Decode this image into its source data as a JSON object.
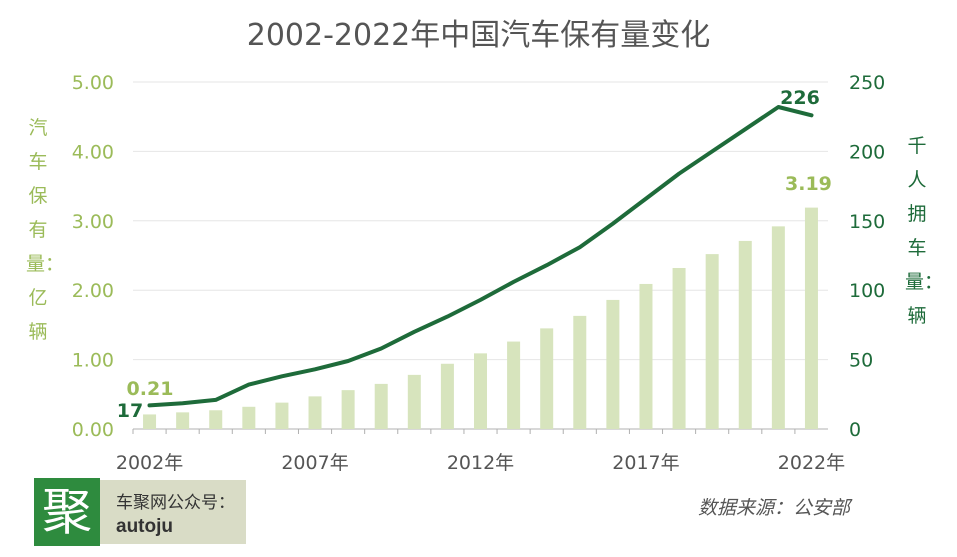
{
  "chart_data": {
    "type": "bar+line",
    "title": "2002-2022年中国汽车保有量变化",
    "x": [
      "2002",
      "2003",
      "2004",
      "2005",
      "2006",
      "2007",
      "2008",
      "2009",
      "2010",
      "2011",
      "2012",
      "2013",
      "2014",
      "2015",
      "2016",
      "2017",
      "2018",
      "2019",
      "2020",
      "2021",
      "2022"
    ],
    "x_tick_labels": [
      "2002年",
      "2007年",
      "2012年",
      "2017年",
      "2022年"
    ],
    "series": [
      {
        "name": "汽车保有量",
        "type": "bar",
        "axis": "left",
        "color": "#d7e4bd",
        "values": [
          0.21,
          0.24,
          0.27,
          0.32,
          0.38,
          0.47,
          0.56,
          0.65,
          0.78,
          0.94,
          1.09,
          1.26,
          1.45,
          1.63,
          1.86,
          2.09,
          2.32,
          2.52,
          2.71,
          2.92,
          3.19
        ]
      },
      {
        "name": "千人拥车量",
        "type": "line",
        "axis": "right",
        "color": "#1e6b3a",
        "values": [
          17,
          18.5,
          21,
          32,
          38,
          43,
          49,
          58,
          70,
          81,
          93,
          106,
          118,
          131,
          148,
          166,
          184,
          200,
          216,
          232,
          226
        ]
      }
    ],
    "y_left": {
      "label": "汽车保有量：亿辆",
      "ticks": [
        "0.00",
        "1.00",
        "2.00",
        "3.00",
        "4.00",
        "5.00"
      ],
      "ylim": [
        0,
        5
      ],
      "color": "#9bbb59"
    },
    "y_right": {
      "label": "千人拥车量：辆",
      "ticks": [
        "0",
        "50",
        "100",
        "150",
        "200",
        "250"
      ],
      "ylim": [
        0,
        250
      ],
      "color": "#1e6b3a"
    },
    "annotations": {
      "bar_first": "0.21",
      "bar_last": "3.19",
      "line_first": "17",
      "line_last": "226"
    },
    "grid": true
  },
  "logo": {
    "glyph": "聚",
    "line1": "车聚网公众号：",
    "line2": "autoju"
  },
  "source": "数据来源：公安部"
}
